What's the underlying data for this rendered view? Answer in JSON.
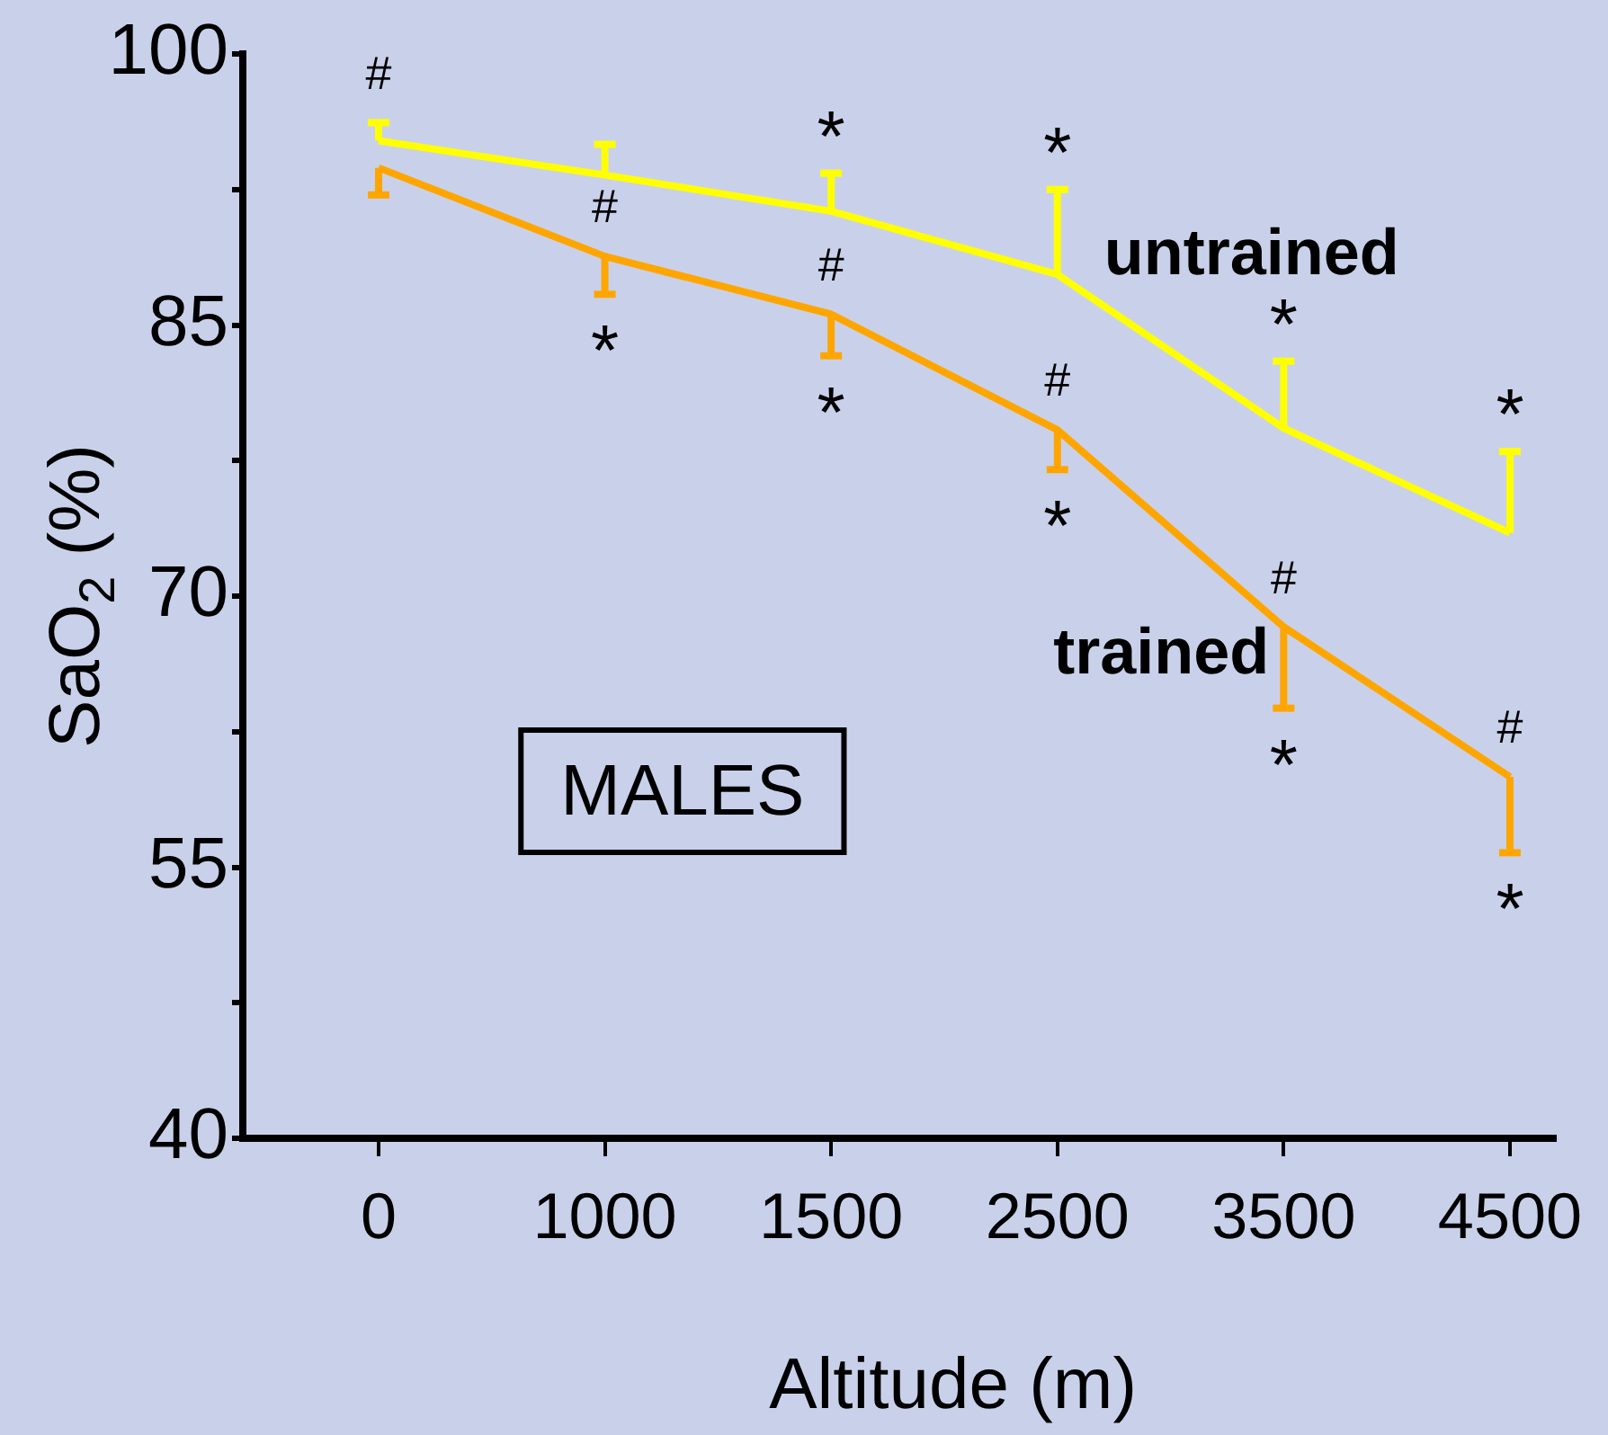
{
  "chart_data": {
    "type": "line",
    "xlabel": "Altitude (m)",
    "ylabel": "SaO$_{2}$ (%)",
    "categories": [
      "0",
      "1000",
      "1500",
      "2500",
      "3500",
      "4500"
    ],
    "series": [
      {
        "name": "untrained",
        "color": "#ffff00",
        "values": [
          95.2,
          93.3,
          91.3,
          87.8,
          79.3,
          73.5
        ],
        "errors": [
          [
            95.2,
            96.2
          ],
          [
            93.3,
            95.0
          ],
          [
            91.3,
            93.4
          ],
          [
            87.8,
            92.5
          ],
          [
            79.3,
            83.0
          ],
          [
            73.5,
            78.0
          ]
        ]
      },
      {
        "name": "trained",
        "color": "#ffa500",
        "values": [
          93.7,
          88.8,
          85.6,
          79.2,
          68.3,
          60.0
        ],
        "errors": [
          [
            92.2,
            93.7
          ],
          [
            86.7,
            88.8
          ],
          [
            83.3,
            85.6
          ],
          [
            77.0,
            79.2
          ],
          [
            63.8,
            68.3
          ],
          [
            55.8,
            60.0
          ]
        ]
      }
    ],
    "ylim": [
      40,
      100
    ],
    "yticks": [
      40,
      {
        "value": 47.5,
        "label": null
      },
      55,
      {
        "value": 62.5,
        "label": null
      },
      70,
      {
        "value": 77.5,
        "label": null
      },
      85,
      {
        "value": 92.5,
        "label": null
      },
      100
    ],
    "legend": false,
    "grid": false,
    "marker": "none",
    "annotations": [
      "MALES",
      {
        "text": "#",
        "x": "0",
        "y": 95.2
      },
      {
        "text": "#",
        "x": "1000",
        "y": 88.8
      },
      {
        "text": "*",
        "x": "1000",
        "y": 88.8
      },
      {
        "text": "*",
        "x": "1500",
        "y": 91.3
      },
      {
        "text": "#",
        "x": "1500",
        "y": 85.6
      },
      {
        "text": "*",
        "x": "1500",
        "y": 85.6
      },
      {
        "text": "*",
        "x": "2500",
        "y": 87.8
      },
      {
        "text": "#",
        "x": "2500",
        "y": 79.2
      },
      {
        "text": "*",
        "x": "2500",
        "y": 79.2
      },
      {
        "text": "*",
        "x": "3500",
        "y": 79.3
      },
      {
        "text": "#",
        "x": "3500",
        "y": 68.3
      },
      {
        "text": "*",
        "x": "3500",
        "y": 68.3
      },
      {
        "text": "*",
        "x": "4500",
        "y": 73.5
      },
      {
        "text": "#",
        "x": "4500",
        "y": 60.0
      },
      {
        "text": "*",
        "x": "4500",
        "y": 60.0
      }
    ]
  }
}
